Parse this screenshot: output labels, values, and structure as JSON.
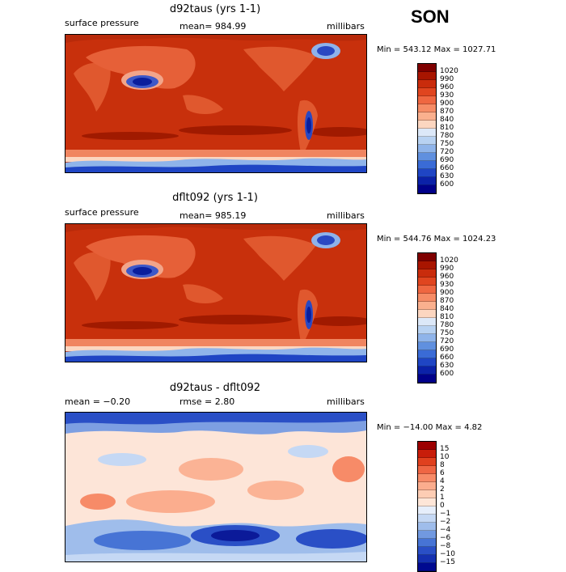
{
  "season": "SON",
  "panels": [
    {
      "title": "d92taus (yrs 1-1)",
      "left_label": "surface pressure",
      "center_label": "mean= 984.99",
      "units": "millibars",
      "minmax": "Min = 543.12 Max = 1027.71"
    },
    {
      "title": "dflt092 (yrs 1-1)",
      "left_label": "surface pressure",
      "center_label": "mean= 985.19",
      "units": "millibars",
      "minmax": "Min = 544.76 Max = 1024.23"
    },
    {
      "title": "d92taus - dflt092",
      "left_label": "mean =  −0.20",
      "center_label": "rmse =   2.80",
      "units": "millibars",
      "minmax": "Min = −14.00 Max =    4.82"
    }
  ],
  "legend_abs": {
    "labels": [
      "1020",
      "990",
      "960",
      "930",
      "900",
      "870",
      "840",
      "810",
      "780",
      "750",
      "720",
      "690",
      "660",
      "630",
      "600"
    ],
    "colors": [
      "#7f0000",
      "#a81500",
      "#c92c0c",
      "#e0451f",
      "#ef6741",
      "#f68c66",
      "#fab08e",
      "#fcd6c0",
      "#dce8f8",
      "#b8d2f2",
      "#8fb4ea",
      "#6090df",
      "#3a6bd6",
      "#1f45c4",
      "#0b21a8",
      "#00008a"
    ]
  },
  "legend_diff": {
    "labels": [
      "15",
      "10",
      "8",
      "6",
      "4",
      "2",
      "1",
      "0",
      "−1",
      "−2",
      "−4",
      "−6",
      "−8",
      "−10",
      "−15"
    ],
    "colors": [
      "#9c0000",
      "#c81d0a",
      "#e0401e",
      "#ef6644",
      "#f78b68",
      "#fbad8e",
      "#fdcdb4",
      "#fee6d8",
      "#e6eefb",
      "#c5d8f4",
      "#9fbdeb",
      "#7199e0",
      "#4774d5",
      "#2a4fc6",
      "#1530b0",
      "#000a90"
    ]
  }
}
